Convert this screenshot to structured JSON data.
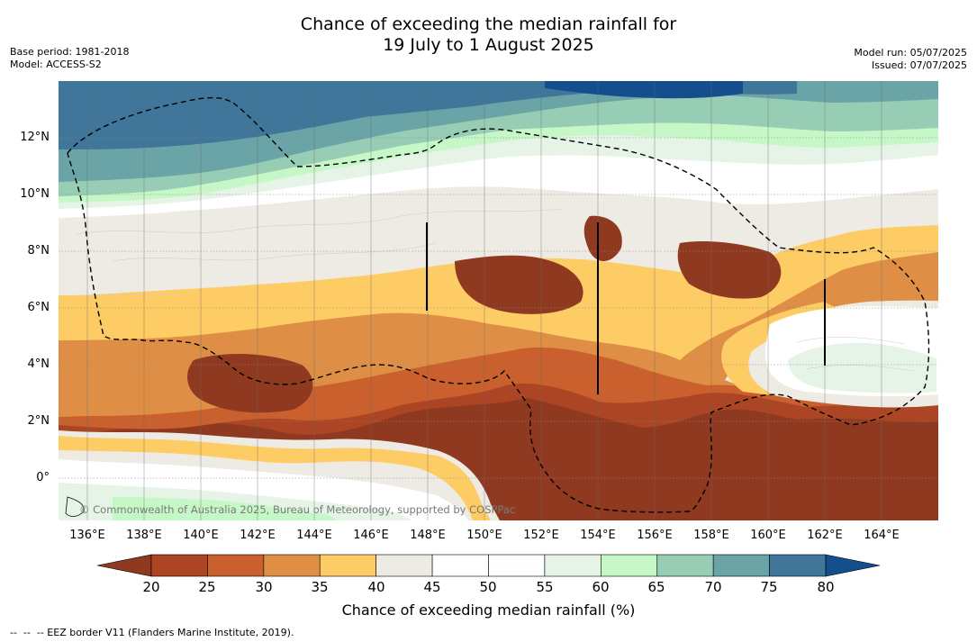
{
  "title": {
    "line1": "Chance of exceeding the median rainfall for",
    "line2": "19 July to 1 August 2025"
  },
  "meta_left": {
    "base_period": "Base period: 1981-2018",
    "model": "Model: ACCESS-S2"
  },
  "meta_right": {
    "model_run": "Model run: 05/07/2025",
    "issued": "Issued: 07/07/2025"
  },
  "map": {
    "lat_labels": [
      "12°N",
      "10°N",
      "8°N",
      "6°N",
      "4°N",
      "2°N",
      "0°"
    ],
    "lon_labels": [
      "136°E",
      "138°E",
      "140°E",
      "142°E",
      "144°E",
      "146°E",
      "148°E",
      "150°E",
      "152°E",
      "154°E",
      "156°E",
      "158°E",
      "160°E",
      "162°E",
      "164°E"
    ],
    "credit": "© Commonwealth of Australia 2025, Bureau of Meteorology, supported by COSPPac",
    "eez_line_color": "#000000"
  },
  "colorbar": {
    "label": "Chance of exceeding median rainfall (%)",
    "ticks": [
      "20",
      "25",
      "30",
      "35",
      "40",
      "45",
      "50",
      "55",
      "60",
      "65",
      "70",
      "75",
      "80"
    ],
    "colors": [
      "#8f3a20",
      "#ab4524",
      "#c9602e",
      "#df8f45",
      "#fdcc65",
      "#eeebe5",
      "#ffffff",
      "#fefefe",
      "#e5f4e6",
      "#c6f7c6",
      "#98cdb5",
      "#6aa4a6",
      "#3f7699",
      "#144e8c"
    ]
  },
  "legend": {
    "eez": "--  --  -- EEZ border V11 (Flanders Marine Institute, 2019)."
  }
}
